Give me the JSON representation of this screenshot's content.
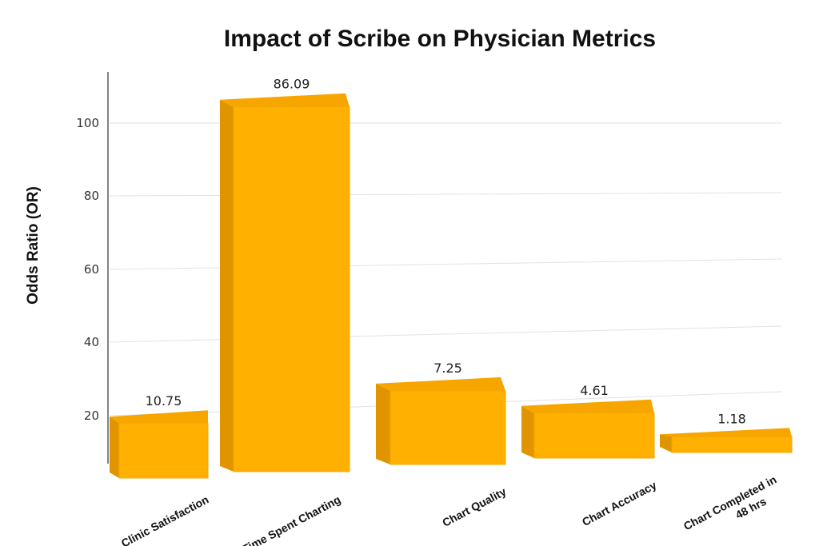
{
  "chart_data": {
    "type": "bar",
    "title": "Impact of Scribe on Physician Metrics",
    "ylabel": "Odds Ratio (OR)",
    "xlabel": "",
    "categories": [
      "Clinic Satisfaction",
      "Time Spent Charting",
      "Chart Quality",
      "Chart Accuracy",
      "Chart Completed in 48 hrs"
    ],
    "values": [
      10.75,
      86.09,
      7.25,
      4.61,
      1.18
    ],
    "data_labels": [
      "10.75",
      "86.09",
      "7.25",
      "4.61",
      "1.18"
    ],
    "yticks": [
      "20",
      "40",
      "60",
      "80",
      "100"
    ],
    "ylim": [
      0,
      110
    ],
    "grid": true,
    "style": "3d-bar",
    "colors": {
      "bar_front": "#FFB000",
      "bar_top": "#F7A600",
      "bar_side": "#E09500",
      "grid": "#e2e2e2"
    }
  }
}
